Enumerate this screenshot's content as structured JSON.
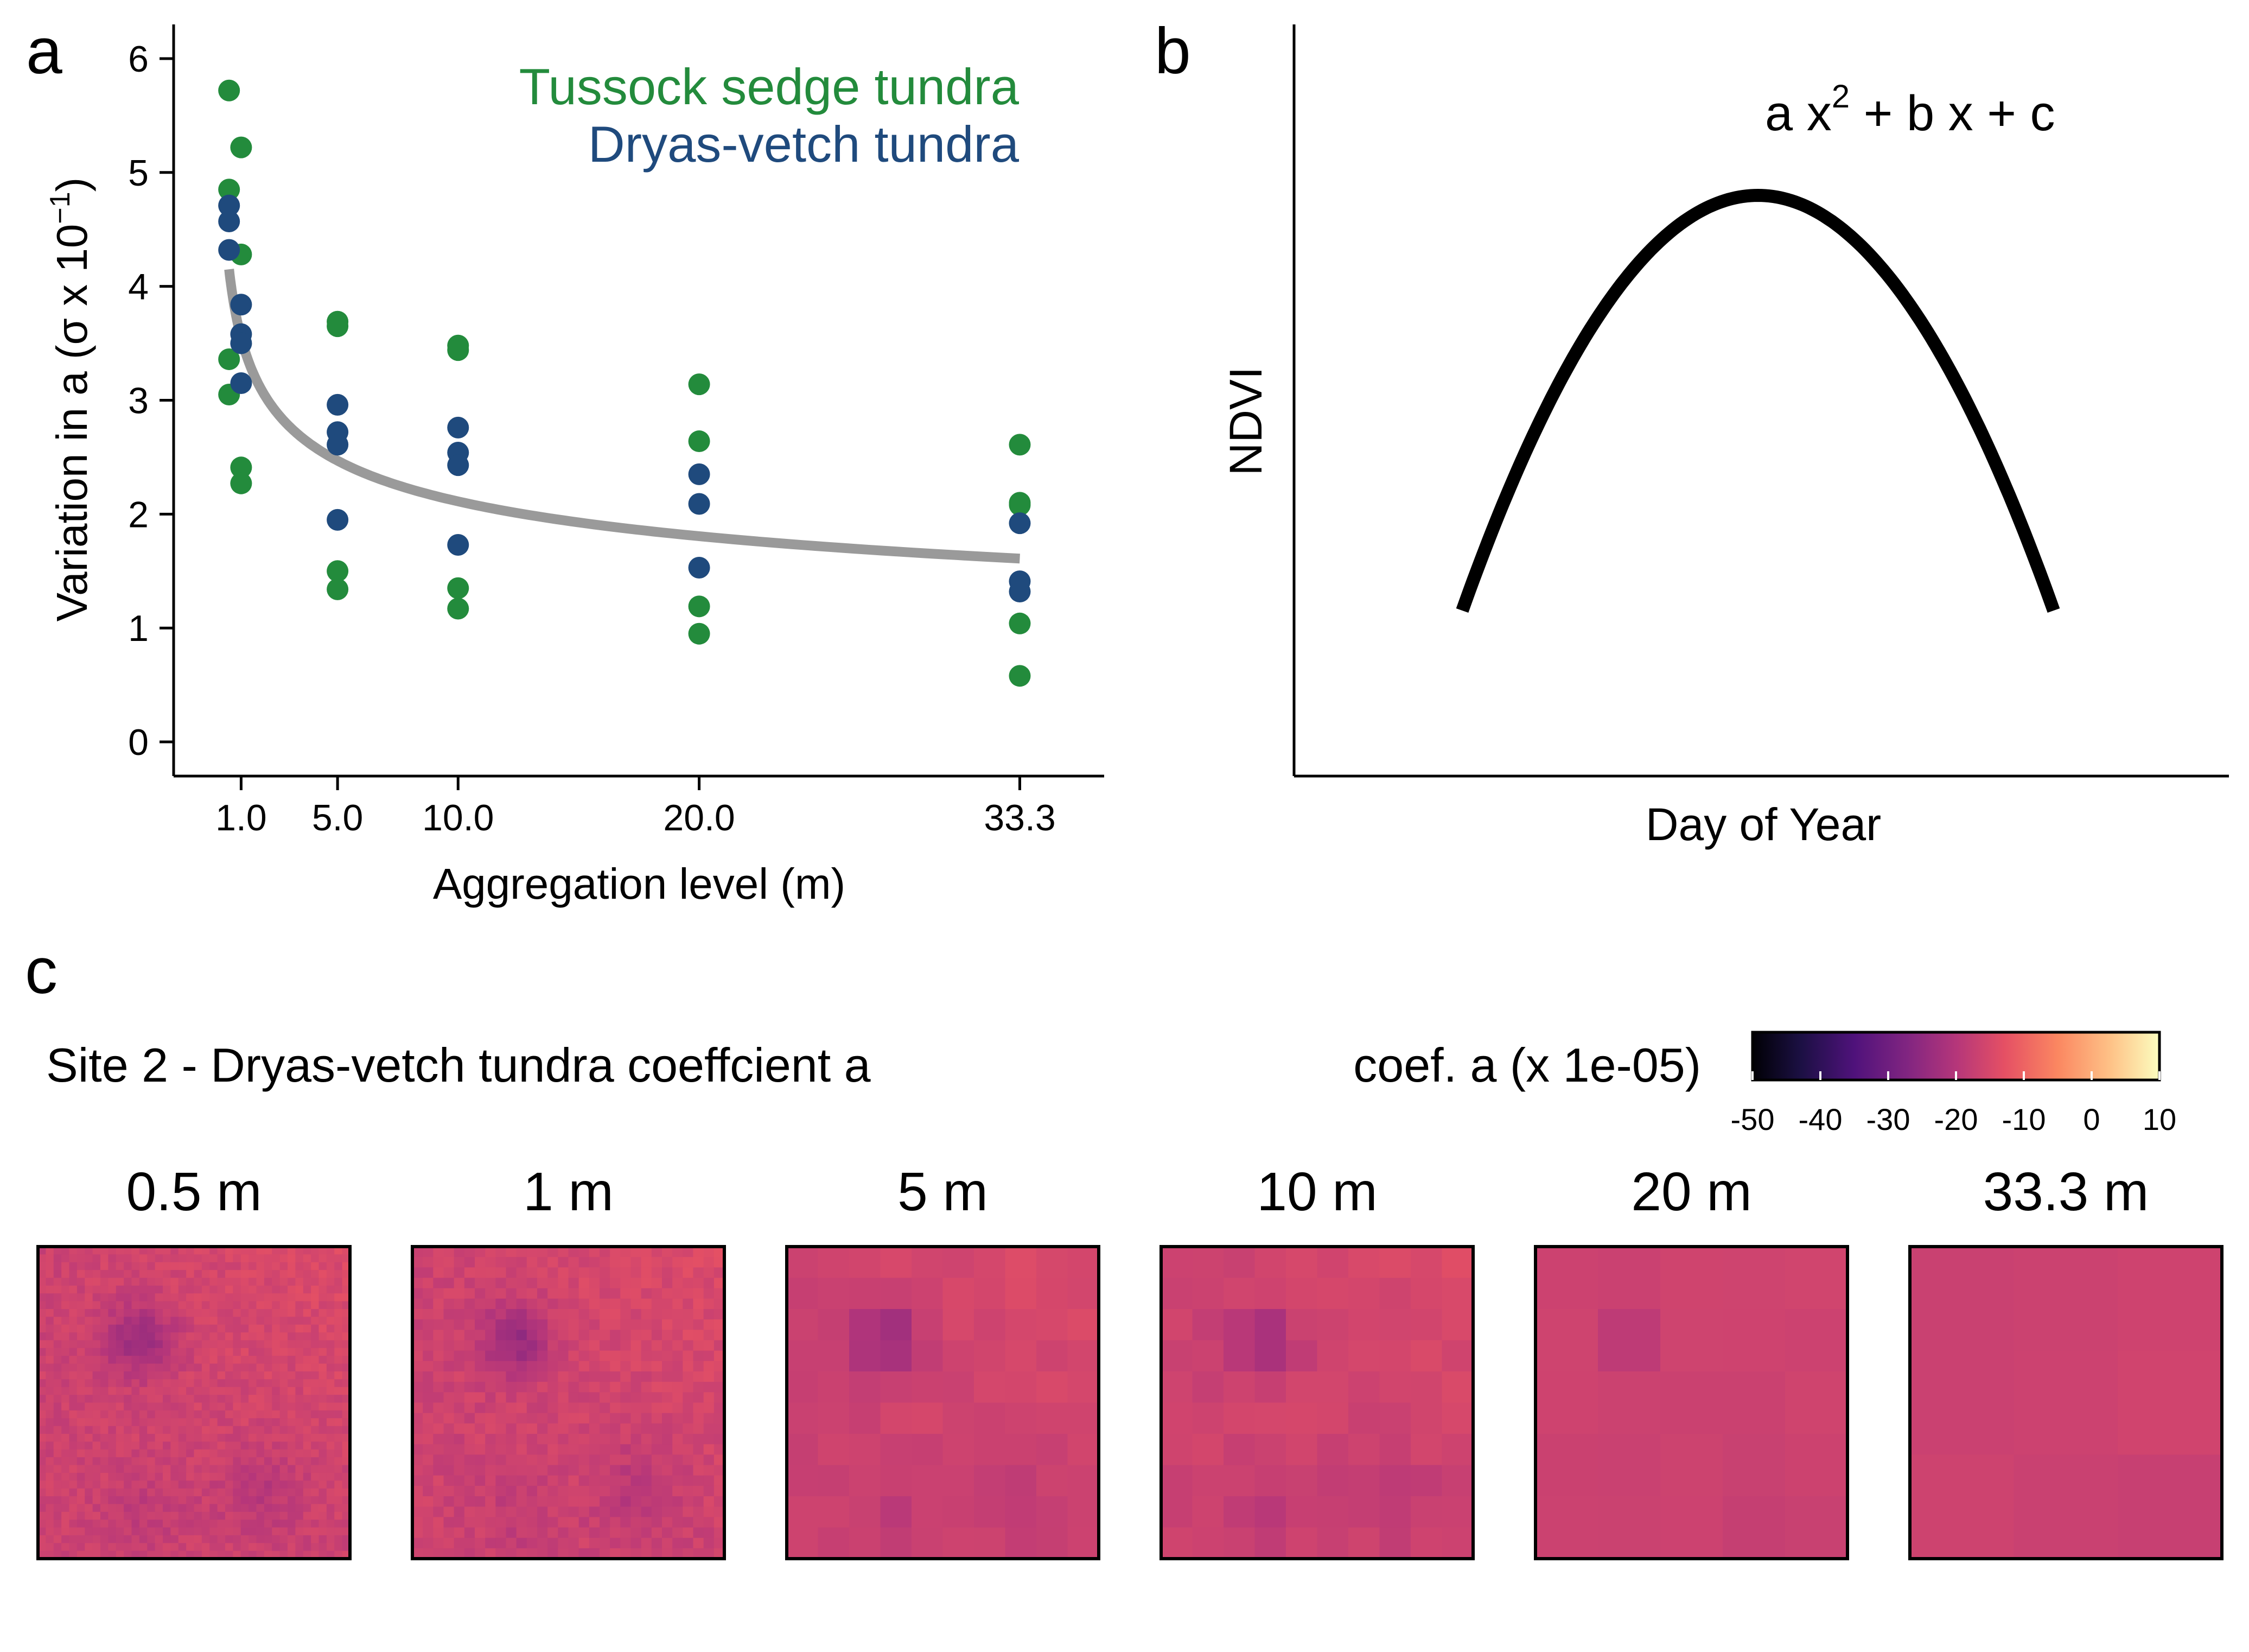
{
  "panels": {
    "a_label": "a",
    "b_label": "b",
    "c_label": "c"
  },
  "colors": {
    "tussock": "#238b3c",
    "dryas": "#1f4a7d",
    "fit_line": "#9a9a9a",
    "curve": "#000000"
  },
  "chart_data": [
    {
      "id": "a",
      "type": "scatter",
      "xlabel": "Aggregation level (m)",
      "ylabel_prefix": "Variation in a (",
      "ylabel_sigma": "σ",
      "ylabel_mid": " x 10",
      "ylabel_exp": "−1",
      "ylabel_suffix": ")",
      "x_ticks": [
        1.0,
        5.0,
        10.0,
        20.0,
        33.3
      ],
      "x_tick_labels": [
        "1.0",
        "5.0",
        "10.0",
        "20.0",
        "33.3"
      ],
      "y_ticks": [
        0,
        1,
        2,
        3,
        4,
        5,
        6
      ],
      "y_tick_labels": [
        "0",
        "1",
        "2",
        "3",
        "4",
        "5",
        "6"
      ],
      "xlim": [
        -1.8,
        36.8
      ],
      "ylim": [
        -0.3,
        6.3
      ],
      "series": [
        {
          "name": "Tussock sedge tundra",
          "color": "#238b3c",
          "points": [
            [
              0.5,
              5.72
            ],
            [
              0.5,
              4.85
            ],
            [
              0.5,
              3.36
            ],
            [
              0.5,
              3.05
            ],
            [
              1.0,
              5.22
            ],
            [
              1.0,
              4.28
            ],
            [
              1.0,
              2.41
            ],
            [
              1.0,
              2.27
            ],
            [
              5.0,
              3.69
            ],
            [
              5.0,
              3.65
            ],
            [
              5.0,
              1.5
            ],
            [
              5.0,
              1.34
            ],
            [
              10.0,
              3.48
            ],
            [
              10.0,
              3.44
            ],
            [
              10.0,
              1.35
            ],
            [
              10.0,
              1.17
            ],
            [
              20.0,
              3.14
            ],
            [
              20.0,
              2.64
            ],
            [
              20.0,
              1.19
            ],
            [
              20.0,
              0.95
            ],
            [
              33.3,
              2.61
            ],
            [
              33.3,
              2.1
            ],
            [
              33.3,
              2.08
            ],
            [
              33.3,
              1.04
            ],
            [
              33.3,
              0.58
            ]
          ]
        },
        {
          "name": "Dryas-vetch tundra",
          "color": "#1f4a7d",
          "points": [
            [
              0.5,
              4.71
            ],
            [
              0.5,
              4.57
            ],
            [
              0.5,
              4.32
            ],
            [
              1.0,
              3.84
            ],
            [
              1.0,
              3.58
            ],
            [
              1.0,
              3.5
            ],
            [
              1.0,
              3.15
            ],
            [
              5.0,
              2.96
            ],
            [
              5.0,
              2.72
            ],
            [
              5.0,
              2.61
            ],
            [
              5.0,
              1.95
            ],
            [
              10.0,
              2.76
            ],
            [
              10.0,
              2.54
            ],
            [
              10.0,
              2.43
            ],
            [
              10.0,
              1.73
            ],
            [
              20.0,
              2.35
            ],
            [
              20.0,
              2.09
            ],
            [
              20.0,
              1.53
            ],
            [
              33.3,
              1.92
            ],
            [
              33.3,
              1.41
            ],
            [
              33.3,
              1.32
            ]
          ]
        }
      ],
      "fit": {
        "color": "#9a9a9a",
        "x_range": [
          0.5,
          33.3
        ],
        "y_at_start": 4.15,
        "y_at_end": 1.61
      }
    },
    {
      "id": "b",
      "type": "line",
      "xlabel": "Day of Year",
      "ylabel": "NDVI",
      "equation": {
        "p1": "a x",
        "sup": "2",
        "p2": " + b x + c"
      },
      "curve": {
        "x_range": [
          -1,
          1
        ],
        "y_vertex": 1.0,
        "y_ends": 0.0
      }
    },
    {
      "id": "c",
      "type": "heatmap",
      "title": "Site 2 - Dryas-vetch tundra coeffcient a",
      "colorbar_label": "coef. a (x 1e-05)",
      "colorbar_ticks": [
        "-50",
        "-40",
        "-30",
        "-20",
        "-10",
        "0",
        "10"
      ],
      "colorbar_range": [
        -50,
        10
      ],
      "maps": [
        {
          "title": "0.5 m",
          "grid": 40
        },
        {
          "title": "1 m",
          "grid": 30
        },
        {
          "title": "5 m",
          "grid": 10
        },
        {
          "title": "10 m",
          "grid": 10
        },
        {
          "title": "20 m",
          "grid": 5
        },
        {
          "title": "33.3 m",
          "grid": 3
        }
      ]
    }
  ]
}
